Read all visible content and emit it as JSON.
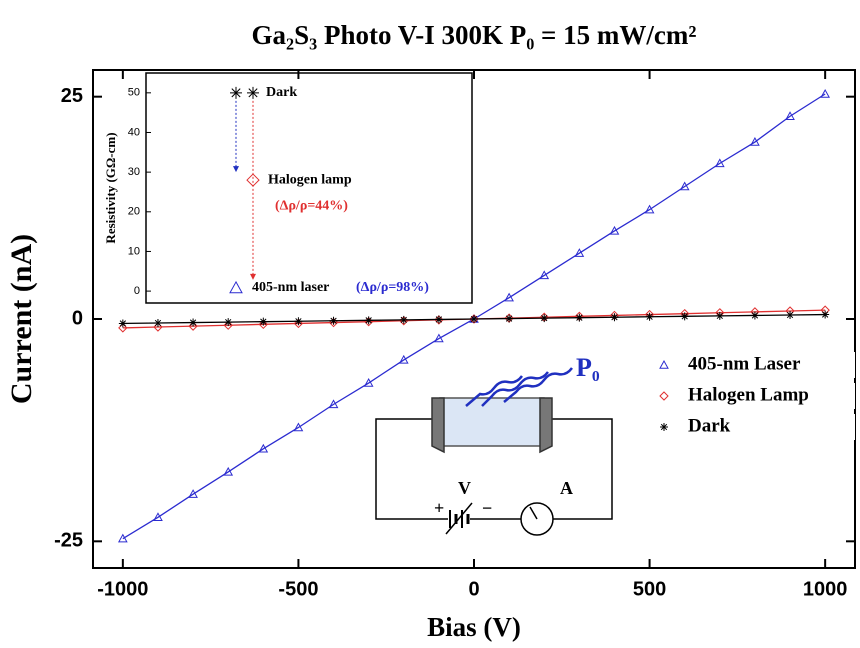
{
  "chart_data": [
    {
      "type": "scatter",
      "title": "Ga₂S₃ Photo V-I  300K  P₀ = 15 mW/cm²",
      "x_label": "Bias (V)",
      "y_label": "Current (nA)",
      "x": [
        -1000,
        -900,
        -800,
        -700,
        -600,
        -500,
        -400,
        -300,
        -200,
        -100,
        0,
        100,
        200,
        300,
        400,
        500,
        600,
        700,
        800,
        900,
        1000
      ],
      "series": [
        {
          "name": "405-nm Laser",
          "color": "#2b2bd0",
          "marker": "triangle",
          "values": [
            -24.7,
            -22.3,
            -19.7,
            -17.2,
            -14.6,
            -12.2,
            -9.6,
            -7.2,
            -4.6,
            -2.2,
            0,
            2.4,
            4.9,
            7.4,
            9.9,
            12.3,
            14.9,
            17.5,
            19.9,
            22.8,
            25.3
          ]
        },
        {
          "name": "Halogen Lamp",
          "color": "#e03030",
          "marker": "diamond",
          "values": [
            -1.0,
            -0.9,
            -0.8,
            -0.7,
            -0.6,
            -0.5,
            -0.4,
            -0.3,
            -0.2,
            -0.1,
            0,
            0.1,
            0.2,
            0.3,
            0.4,
            0.5,
            0.6,
            0.7,
            0.8,
            0.9,
            1.0
          ]
        },
        {
          "name": "Dark",
          "color": "#000000",
          "marker": "asterisk",
          "values": [
            -0.5,
            -0.45,
            -0.4,
            -0.35,
            -0.3,
            -0.25,
            -0.2,
            -0.15,
            -0.1,
            -0.05,
            0,
            0.05,
            0.1,
            0.15,
            0.2,
            0.25,
            0.3,
            0.35,
            0.4,
            0.45,
            0.5
          ]
        }
      ],
      "xlim": [
        -1085,
        1085
      ],
      "xticks": [
        -1000,
        -500,
        0,
        500,
        1000
      ],
      "ylim": [
        -28,
        28
      ],
      "yticks": [
        -25,
        0,
        25
      ],
      "annotations": [
        "P₀",
        "V",
        "A",
        "+",
        "−"
      ]
    },
    {
      "type": "scatter",
      "y_label": "Resistivity (GΩ-cm)",
      "series": [
        {
          "name": "Dark",
          "color": "#000000",
          "marker": "asterisk",
          "values": [
            50,
            50
          ]
        },
        {
          "name": "Halogen lamp",
          "color": "#e03030",
          "marker": "diamond",
          "values": [
            28
          ],
          "note": "(Δρ/ρ=44%)"
        },
        {
          "name": "405-nm laser",
          "color": "#2b2bd0",
          "marker": "triangle",
          "values": [
            0.8
          ],
          "note": "(Δρ/ρ=98%)"
        }
      ],
      "ylim": [
        -3,
        55
      ],
      "yticks": [
        0,
        10,
        20,
        30,
        40,
        50
      ]
    }
  ]
}
